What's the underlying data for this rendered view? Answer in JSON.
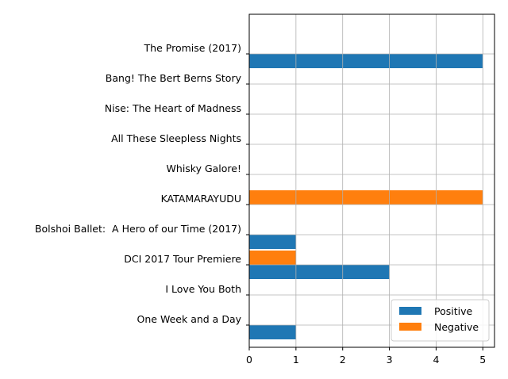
{
  "chart_data": {
    "type": "bar",
    "orientation": "horizontal",
    "categories": [
      "One Week and a Day",
      "I Love You Both",
      "DCI 2017 Tour Premiere",
      "Bolshoi Ballet:  A Hero of our Time (2017)",
      "KATAMARAYUDU",
      "Whisky Galore!",
      "All These Sleepless Nights",
      "Nise: The Heart of Madness",
      "Bang! The Bert Berns Story",
      "The Promise (2017)"
    ],
    "series": [
      {
        "name": "Positive",
        "color": "#1f77b4",
        "values": [
          1,
          0,
          3,
          1,
          0,
          0,
          0,
          0,
          0,
          5
        ]
      },
      {
        "name": "Negative",
        "color": "#ff7f0e",
        "values": [
          0,
          0,
          1,
          0,
          5,
          0,
          0,
          0,
          0,
          0
        ]
      }
    ],
    "xlim": [
      0,
      5.25
    ],
    "xticks": [
      "0",
      "1",
      "2",
      "3",
      "4",
      "5"
    ],
    "grid": true,
    "legend": "lower-right"
  }
}
